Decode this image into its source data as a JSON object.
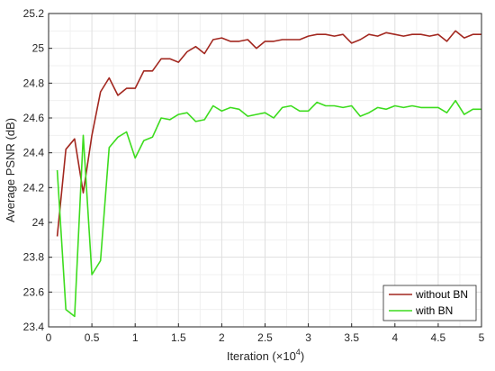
{
  "chart_data": {
    "type": "line",
    "xlabel": "Iteration (×10",
    "xlabel_exponent": "4",
    "xlabel_suffix": ")",
    "ylabel": "Average PSNR (dB)",
    "xlim": [
      0,
      5
    ],
    "ylim": [
      23.4,
      25.2
    ],
    "xticks": [
      0,
      0.5,
      1,
      1.5,
      2,
      2.5,
      3,
      3.5,
      4,
      4.5,
      5
    ],
    "xtick_labels": [
      "0",
      "0.5",
      "1",
      "1.5",
      "2",
      "2.5",
      "3",
      "3.5",
      "4",
      "4.5",
      "5"
    ],
    "yticks": [
      23.4,
      23.6,
      23.8,
      24,
      24.2,
      24.4,
      24.6,
      24.8,
      25,
      25.2
    ],
    "ytick_labels": [
      "23.4",
      "23.6",
      "23.8",
      "24",
      "24.2",
      "24.4",
      "24.6",
      "24.8",
      "25",
      "25.2"
    ],
    "grid": true,
    "legend_position": "bottom-right",
    "series": [
      {
        "name": "without BN",
        "color": "#a2271f",
        "x": [
          0.1,
          0.2,
          0.3,
          0.4,
          0.5,
          0.6,
          0.7,
          0.8,
          0.9,
          1.0,
          1.1,
          1.2,
          1.3,
          1.4,
          1.5,
          1.6,
          1.7,
          1.8,
          1.9,
          2.0,
          2.1,
          2.2,
          2.3,
          2.4,
          2.5,
          2.6,
          2.7,
          2.8,
          2.9,
          3.0,
          3.1,
          3.2,
          3.3,
          3.4,
          3.5,
          3.6,
          3.7,
          3.8,
          3.9,
          4.0,
          4.1,
          4.2,
          4.3,
          4.4,
          4.5,
          4.6,
          4.7,
          4.8,
          4.9,
          5.0
        ],
        "y": [
          23.92,
          24.42,
          24.48,
          24.17,
          24.5,
          24.75,
          24.83,
          24.73,
          24.77,
          24.77,
          24.87,
          24.87,
          24.94,
          24.94,
          24.92,
          24.98,
          25.01,
          24.97,
          25.05,
          25.06,
          25.04,
          25.04,
          25.05,
          25.0,
          25.04,
          25.04,
          25.05,
          25.05,
          25.05,
          25.07,
          25.08,
          25.08,
          25.07,
          25.08,
          25.03,
          25.05,
          25.08,
          25.07,
          25.09,
          25.08,
          25.07,
          25.08,
          25.08,
          25.07,
          25.08,
          25.04,
          25.1,
          25.06,
          25.08,
          25.08
        ]
      },
      {
        "name": "with BN",
        "color": "#3ddc1e",
        "x": [
          0.1,
          0.2,
          0.3,
          0.4,
          0.5,
          0.6,
          0.7,
          0.8,
          0.9,
          1.0,
          1.1,
          1.2,
          1.3,
          1.4,
          1.5,
          1.6,
          1.7,
          1.8,
          1.9,
          2.0,
          2.1,
          2.2,
          2.3,
          2.4,
          2.5,
          2.6,
          2.7,
          2.8,
          2.9,
          3.0,
          3.1,
          3.2,
          3.3,
          3.4,
          3.5,
          3.6,
          3.7,
          3.8,
          3.9,
          4.0,
          4.1,
          4.2,
          4.3,
          4.4,
          4.5,
          4.6,
          4.7,
          4.8,
          4.9,
          5.0
        ],
        "y": [
          24.3,
          23.5,
          23.46,
          24.5,
          23.7,
          23.78,
          24.43,
          24.49,
          24.52,
          24.37,
          24.47,
          24.49,
          24.6,
          24.59,
          24.62,
          24.63,
          24.58,
          24.59,
          24.67,
          24.64,
          24.66,
          24.65,
          24.61,
          24.62,
          24.63,
          24.6,
          24.66,
          24.67,
          24.64,
          24.64,
          24.69,
          24.67,
          24.67,
          24.66,
          24.67,
          24.61,
          24.63,
          24.66,
          24.65,
          24.67,
          24.66,
          24.67,
          24.66,
          24.66,
          24.66,
          24.63,
          24.7,
          24.62,
          24.65,
          24.65
        ]
      }
    ]
  }
}
